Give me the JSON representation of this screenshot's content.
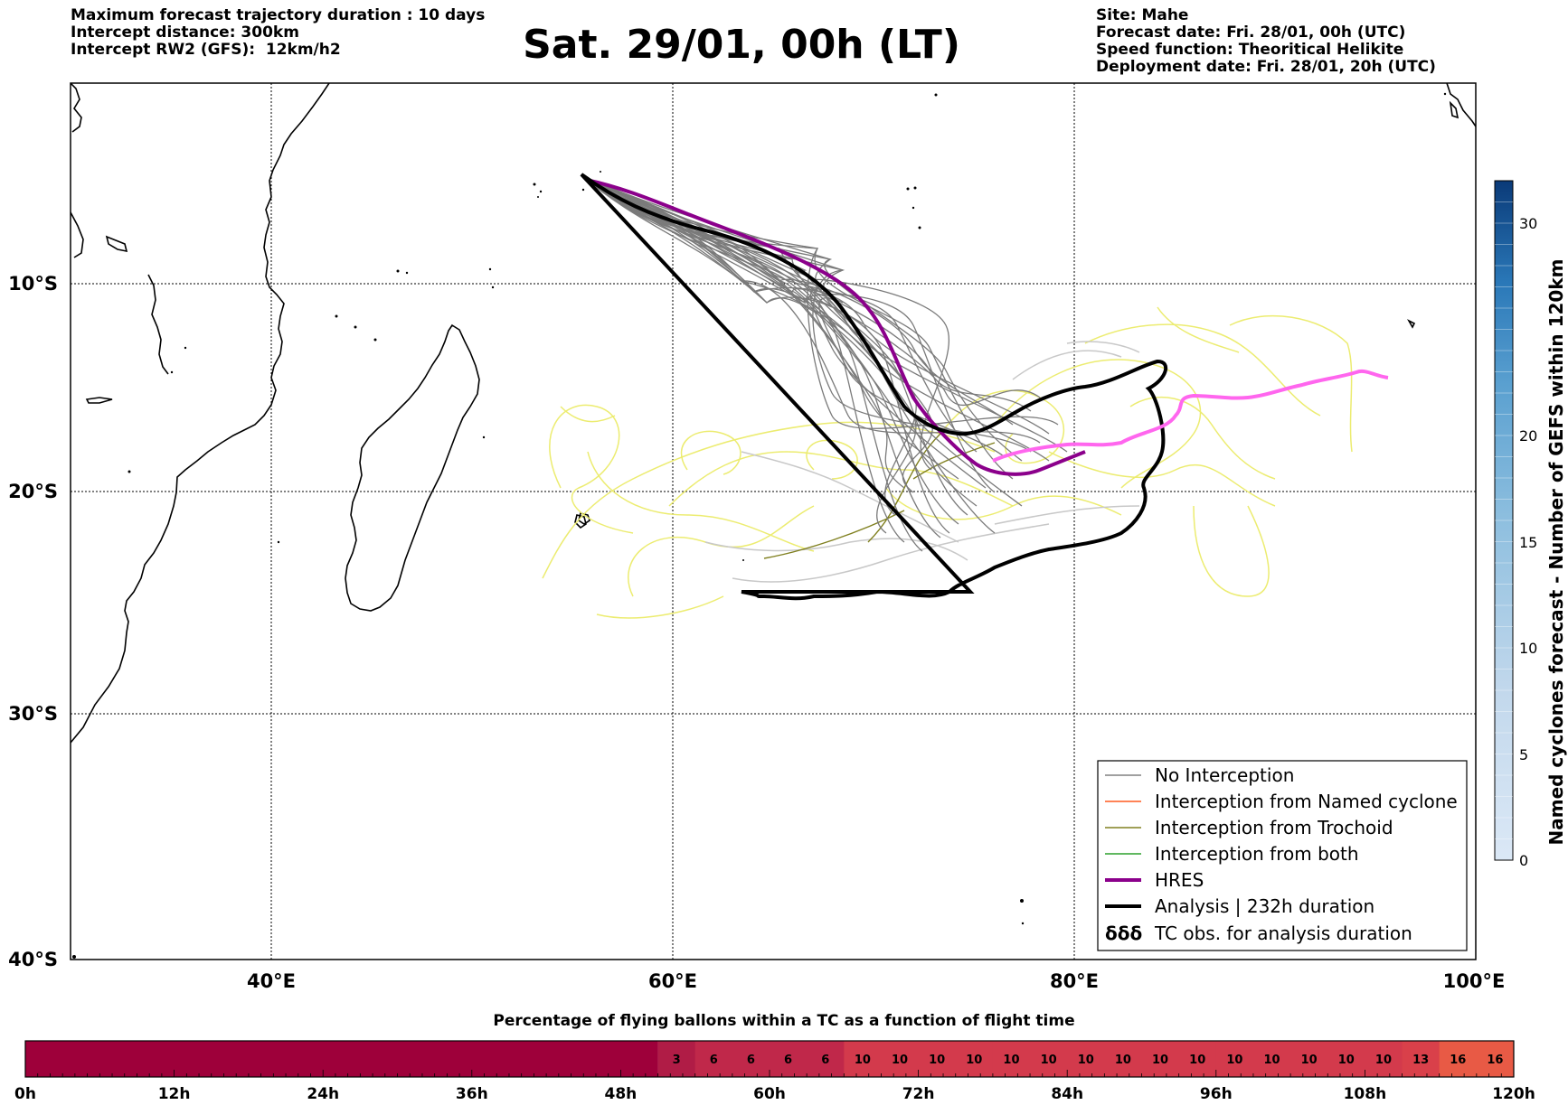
{
  "header": {
    "left_lines": [
      "Maximum forecast trajectory duration : 10 days",
      "Intercept distance: 300km",
      "Intercept RW2 (GFS):  12km/h2"
    ],
    "title": "Sat. 29/01, 00h (LT)",
    "right_lines": [
      "Site: Mahe",
      "Forecast date: Fri. 28/01, 00h (UTC)",
      "Speed function: Theoritical Helikite",
      "Deployment date: Fri. 28/01, 20h (UTC)"
    ]
  },
  "map": {
    "lat_labels": [
      "10°S",
      "20°S",
      "30°S",
      "40°S"
    ],
    "lon_labels": [
      "40°E",
      "60°E",
      "80°E",
      "100°E"
    ],
    "colors": {
      "no_interception": "#808080",
      "named_cyclone": "#ff5a1f",
      "trochoid": "#808020",
      "both": "#2ca02c",
      "hres": "#8b008b",
      "analysis": "#000000",
      "tc_obs": "#ff66ee",
      "yellow_tracks": "#ecec70"
    }
  },
  "legend": {
    "items": [
      {
        "label": "No Interception",
        "symbol": "gray-line"
      },
      {
        "label": "Interception from Named cyclone",
        "symbol": "orange-line"
      },
      {
        "label": "Interception from Trochoid",
        "symbol": "olive-line"
      },
      {
        "label": "Interception from both",
        "symbol": "green-line"
      },
      {
        "label": "HRES",
        "symbol": "purple-thick-line"
      },
      {
        "label": "Analysis | 232h duration",
        "symbol": "black-thick-line"
      },
      {
        "label": "TC obs. for analysis duration",
        "symbol": "cyclone-icon"
      }
    ],
    "tc_symbol_text": "δδδ"
  },
  "colorbar": {
    "label": "Named cyclones forecast - Number of GEFS within 120km",
    "ticks": [
      "0",
      "5",
      "10",
      "15",
      "20",
      "30"
    ]
  },
  "time_bar": {
    "title": "Percentage of flying ballons within a TC as a function of flight time",
    "hour_labels": [
      "0h",
      "12h",
      "24h",
      "36h",
      "48h",
      "60h",
      "72h",
      "84h",
      "96h",
      "108h",
      "120h"
    ],
    "cells": [
      "3",
      "6",
      "6",
      "6",
      "6",
      "10",
      "10",
      "10",
      "10",
      "10",
      "10",
      "10",
      "10",
      "10",
      "10",
      "10",
      "10",
      "10",
      "10",
      "10",
      "13",
      "16",
      "16"
    ]
  }
}
